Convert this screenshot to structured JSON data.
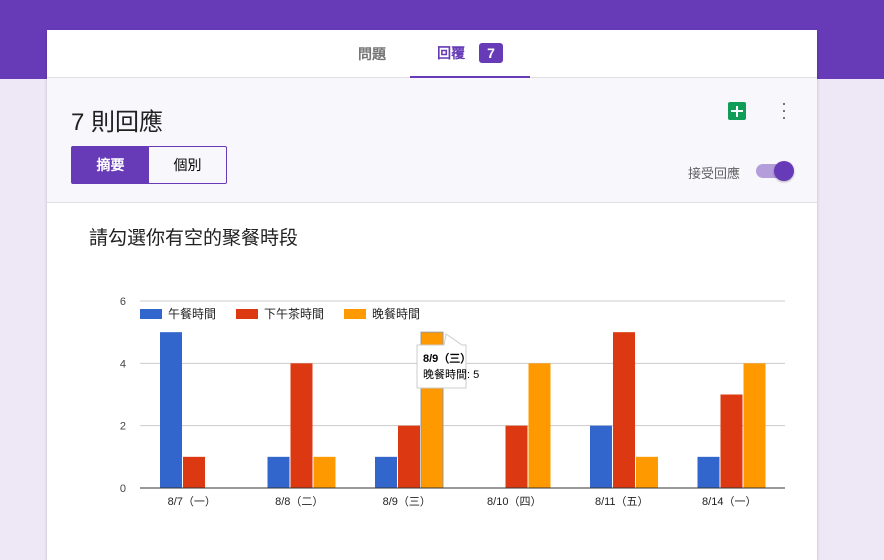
{
  "tabs": {
    "questions": "問題",
    "responses": "回覆",
    "count": "7"
  },
  "header": {
    "title": "7 則回應",
    "summary": "摘要",
    "individual": "個別",
    "accepting": "接受回應",
    "accepting_on": true
  },
  "question": {
    "title": "請勾選你有空的聚餐時段"
  },
  "tooltip": {
    "title": "8/9（三）",
    "text": "晚餐時間: 5"
  },
  "chart_data": {
    "type": "bar",
    "categories": [
      "8/7（一）",
      "8/8（二）",
      "8/9（三）",
      "8/10（四）",
      "8/11（五）",
      "8/14（一）"
    ],
    "series": [
      {
        "name": "午餐時間",
        "color": "#3366cc",
        "values": [
          5,
          1,
          1,
          0,
          2,
          1
        ]
      },
      {
        "name": "下午茶時間",
        "color": "#dc3912",
        "values": [
          1,
          4,
          2,
          2,
          5,
          3
        ]
      },
      {
        "name": "晚餐時間",
        "color": "#ff9900",
        "values": [
          0,
          1,
          5,
          4,
          1,
          4
        ]
      }
    ],
    "yticks": [
      "0",
      "2",
      "4",
      "6"
    ],
    "ylim": [
      0,
      6
    ],
    "grid": true,
    "legend": "top-left"
  }
}
